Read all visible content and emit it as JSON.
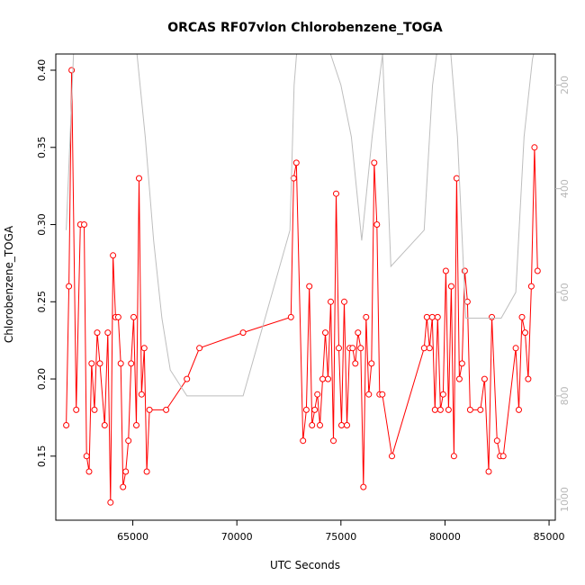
{
  "chart_data": {
    "type": "line",
    "title": "ORCAS RF07vlon Chlorobenzene_TOGA",
    "xlabel": "UTC Seconds",
    "ylabel": "Chlorobenzene_TOGA",
    "xlim": [
      61300,
      85300
    ],
    "ylim": [
      0.1085,
      0.4105
    ],
    "xticks": [
      65000,
      70000,
      75000,
      80000,
      85000
    ],
    "yticks": [
      0.15,
      0.2,
      0.25,
      0.3,
      0.35,
      0.4
    ],
    "xtick_labels": [
      "65000",
      "70000",
      "75000",
      "80000",
      "85000"
    ],
    "ytick_labels": [
      "0.15",
      "0.20",
      "0.25",
      "0.30",
      "0.35",
      "0.40"
    ],
    "y2lim": [
      1040,
      140
    ],
    "y2ticks": [
      200,
      400,
      600,
      800,
      1000
    ],
    "y2tick_labels": [
      "200",
      "400",
      "600",
      "800",
      "1000"
    ],
    "series": [
      {
        "color": "#ff0000",
        "marker": "open-circle",
        "x": [
          61800,
          61930,
          62060,
          62280,
          62480,
          62660,
          62780,
          62900,
          63020,
          63160,
          63290,
          63420,
          63650,
          63800,
          63930,
          64050,
          64170,
          64300,
          64420,
          64530,
          64660,
          64790,
          64920,
          65040,
          65170,
          65300,
          65420,
          65550,
          65670,
          65800,
          66600,
          67600,
          68200,
          70300,
          72600,
          72730,
          72860,
          73180,
          73340,
          73480,
          73610,
          73740,
          73870,
          73990,
          74120,
          74250,
          74380,
          74510,
          74640,
          74770,
          74900,
          75030,
          75160,
          75290,
          75420,
          75560,
          75690,
          75820,
          75950,
          76080,
          76210,
          76340,
          76470,
          76600,
          76730,
          76860,
          76990,
          77450,
          79000,
          79130,
          79260,
          79390,
          79520,
          79650,
          79780,
          79910,
          80040,
          80170,
          80300,
          80430,
          80560,
          80690,
          80820,
          80950,
          81080,
          81210,
          81700,
          81900,
          82100,
          82250,
          82500,
          82650,
          82800,
          83400,
          83550,
          83700,
          83850,
          84000,
          84150,
          84300,
          84450
        ],
        "y": [
          0.17,
          0.26,
          0.4,
          0.18,
          0.3,
          0.3,
          0.15,
          0.14,
          0.21,
          0.18,
          0.23,
          0.21,
          0.17,
          0.23,
          0.12,
          0.28,
          0.24,
          0.24,
          0.21,
          0.13,
          0.14,
          0.16,
          0.21,
          0.24,
          0.17,
          0.33,
          0.19,
          0.22,
          0.14,
          0.18,
          0.18,
          0.2,
          0.22,
          0.23,
          0.24,
          0.33,
          0.34,
          0.16,
          0.18,
          0.26,
          0.17,
          0.18,
          0.19,
          0.17,
          0.2,
          0.23,
          0.2,
          0.25,
          0.16,
          0.32,
          0.22,
          0.17,
          0.25,
          0.17,
          0.22,
          0.22,
          0.21,
          0.23,
          0.22,
          0.13,
          0.24,
          0.19,
          0.21,
          0.34,
          0.3,
          0.19,
          0.19,
          0.15,
          0.22,
          0.24,
          0.22,
          0.24,
          0.18,
          0.24,
          0.18,
          0.19,
          0.27,
          0.18,
          0.26,
          0.15,
          0.33,
          0.2,
          0.21,
          0.27,
          0.25,
          0.18,
          0.18,
          0.2,
          0.14,
          0.24,
          0.16,
          0.15,
          0.15,
          0.22,
          0.18,
          0.24,
          0.23,
          0.2,
          0.26,
          0.35,
          0.27
        ]
      },
      {
        "color": "#bebebe",
        "axis": "right",
        "x": [
          61800,
          62150,
          62700,
          63200,
          63700,
          64200,
          64800,
          65200,
          65600,
          66000,
          66400,
          66800,
          67600,
          70300,
          72550,
          72750,
          72950,
          73200,
          73600,
          74000,
          74500,
          75000,
          75500,
          76000,
          76500,
          77000,
          77400,
          79000,
          79400,
          79800,
          80200,
          80600,
          81000,
          82700,
          83400,
          83800,
          84200,
          84500
        ],
        "y": [
          480,
          140,
          100,
          80,
          90,
          100,
          110,
          140,
          300,
          500,
          650,
          750,
          800,
          800,
          480,
          200,
          100,
          80,
          90,
          110,
          140,
          200,
          300,
          500,
          300,
          140,
          550,
          480,
          200,
          80,
          100,
          300,
          650,
          650,
          600,
          300,
          150,
          100
        ]
      }
    ]
  }
}
